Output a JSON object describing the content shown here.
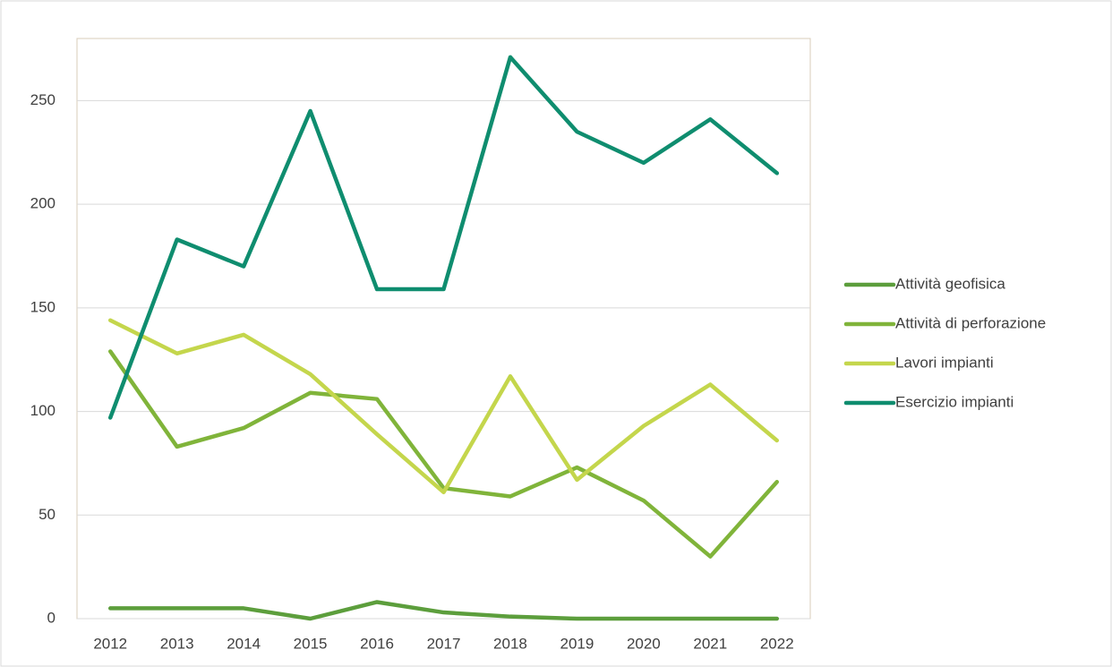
{
  "chart_data": {
    "type": "line",
    "categories": [
      "2012",
      "2013",
      "2014",
      "2015",
      "2016",
      "2017",
      "2018",
      "2019",
      "2020",
      "2021",
      "2022"
    ],
    "series": [
      {
        "name": "Attività geofisica",
        "color": "#5c9e3c",
        "values": [
          5,
          5,
          5,
          0,
          8,
          3,
          1,
          0,
          0,
          0,
          0
        ]
      },
      {
        "name": "Attività di perforazione",
        "color": "#80b43a",
        "values": [
          129,
          83,
          92,
          109,
          106,
          63,
          59,
          73,
          57,
          30,
          66
        ]
      },
      {
        "name": "Lavori impianti",
        "color": "#c4d64c",
        "values": [
          144,
          128,
          137,
          118,
          89,
          61,
          117,
          67,
          93,
          113,
          86
        ]
      },
      {
        "name": "Esercizio impianti",
        "color": "#0f8d6f",
        "values": [
          97,
          183,
          170,
          245,
          159,
          159,
          271,
          235,
          220,
          241,
          215
        ]
      }
    ],
    "ylim": [
      0,
      280
    ],
    "yticks": [
      0,
      50,
      100,
      150,
      200,
      250
    ],
    "grid": true,
    "legend": "right"
  }
}
